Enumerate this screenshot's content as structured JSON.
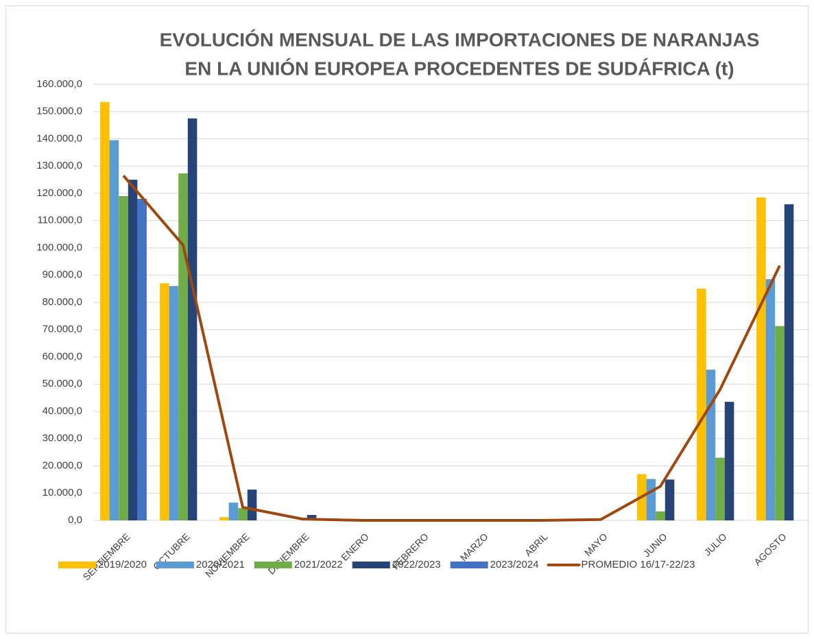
{
  "chart_data": {
    "type": "bar",
    "title": [
      "EVOLUCIÓN MENSUAL DE LAS IMPORTACIONES DE NARANJAS",
      "EN LA UNIÓN EUROPEA PROCEDENTES DE SUDÁFRICA (t)"
    ],
    "categories": [
      "SEPTIEMBRE",
      "OCTUBRE",
      "NOVIEMBRE",
      "DICIEMBRE",
      "ENERO",
      "FEBRERO",
      "MARZO",
      "ABRIL",
      "MAYO",
      "JUNIO",
      "JULIO",
      "AGOSTO"
    ],
    "series": [
      {
        "name": "2019/2020",
        "color": "#ffc000",
        "values": [
          153500,
          87000,
          1200,
          0,
          0,
          0,
          0,
          0,
          0,
          17000,
          85000,
          118500
        ]
      },
      {
        "name": "2020/2021",
        "color": "#5b9bd5",
        "values": [
          139500,
          86000,
          6500,
          0,
          0,
          0,
          0,
          0,
          0,
          15200,
          55300,
          88500
        ]
      },
      {
        "name": "2021/2022",
        "color": "#70ad47",
        "values": [
          119000,
          127300,
          4500,
          0,
          0,
          0,
          0,
          0,
          0,
          3300,
          23000,
          71300
        ]
      },
      {
        "name": "2022/2023",
        "color": "#264478",
        "values": [
          125000,
          147500,
          11300,
          2000,
          0,
          0,
          0,
          0,
          0,
          15000,
          43500,
          116000
        ]
      },
      {
        "name": "2023/2024",
        "color": "#4472c4",
        "values": [
          118000,
          null,
          null,
          null,
          null,
          null,
          null,
          null,
          null,
          null,
          null,
          null
        ]
      },
      {
        "name": "PROMEDIO 16/17-22/23",
        "type": "line",
        "color": "#9e480e",
        "values": [
          126500,
          101000,
          4800,
          500,
          0,
          0,
          0,
          0,
          300,
          12500,
          48000,
          93500
        ]
      }
    ],
    "ylim": [
      0,
      160000
    ],
    "yticks": [
      {
        "value": 0,
        "label": "0,0"
      },
      {
        "value": 10000,
        "label": "10.000,0"
      },
      {
        "value": 20000,
        "label": "20.000,0"
      },
      {
        "value": 30000,
        "label": "30.000,0"
      },
      {
        "value": 40000,
        "label": "40.000,0"
      },
      {
        "value": 50000,
        "label": "50.000,0"
      },
      {
        "value": 60000,
        "label": "60.000,0"
      },
      {
        "value": 70000,
        "label": "70.000,0"
      },
      {
        "value": 80000,
        "label": "80.000,0"
      },
      {
        "value": 90000,
        "label": "90.000,0"
      },
      {
        "value": 100000,
        "label": "100.000,0"
      },
      {
        "value": 110000,
        "label": "110.000,0"
      },
      {
        "value": 120000,
        "label": "120.000,0"
      },
      {
        "value": 130000,
        "label": "130.000,0"
      },
      {
        "value": 140000,
        "label": "140.000,0"
      },
      {
        "value": 150000,
        "label": "150.000,0"
      },
      {
        "value": 160000,
        "label": "160.000,0"
      }
    ],
    "grid": true,
    "legend": "bottom"
  }
}
